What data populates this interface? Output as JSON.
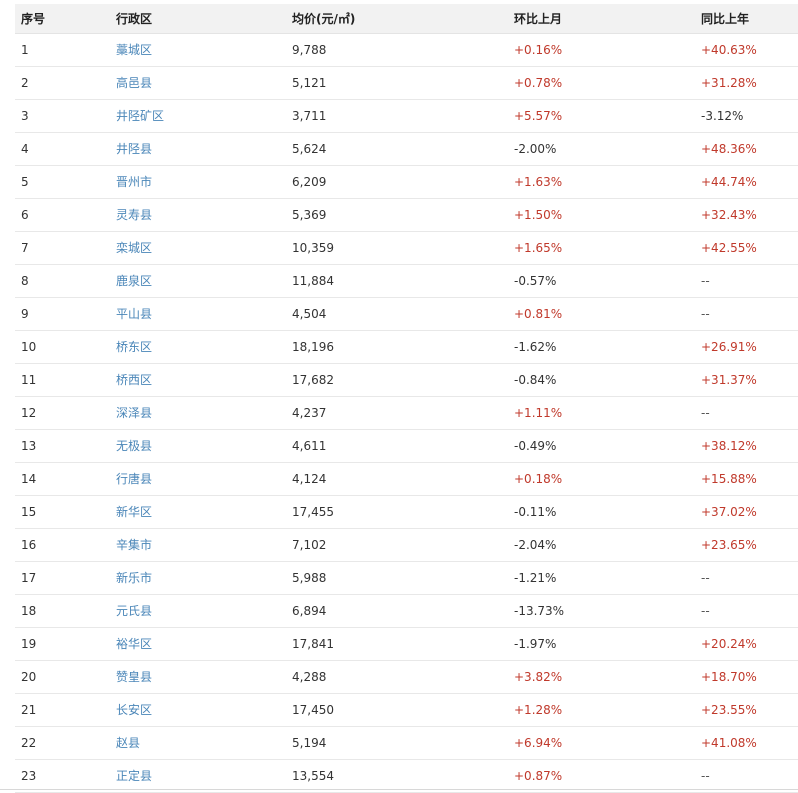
{
  "table": {
    "headers": [
      "序号",
      "行政区",
      "均价(元/㎡)",
      "环比上月",
      "同比上年"
    ],
    "rows": [
      [
        "1",
        "藁城区",
        "9,788",
        "+0.16%",
        "+40.63%"
      ],
      [
        "2",
        "高邑县",
        "5,121",
        "+0.78%",
        "+31.28%"
      ],
      [
        "3",
        "井陉矿区",
        "3,711",
        "+5.57%",
        "-3.12%"
      ],
      [
        "4",
        "井陉县",
        "5,624",
        "-2.00%",
        "+48.36%"
      ],
      [
        "5",
        "晋州市",
        "6,209",
        "+1.63%",
        "+44.74%"
      ],
      [
        "6",
        "灵寿县",
        "5,369",
        "+1.50%",
        "+32.43%"
      ],
      [
        "7",
        "栾城区",
        "10,359",
        "+1.65%",
        "+42.55%"
      ],
      [
        "8",
        "鹿泉区",
        "11,884",
        "-0.57%",
        "--"
      ],
      [
        "9",
        "平山县",
        "4,504",
        "+0.81%",
        "--"
      ],
      [
        "10",
        "桥东区",
        "18,196",
        "-1.62%",
        "+26.91%"
      ],
      [
        "11",
        "桥西区",
        "17,682",
        "-0.84%",
        "+31.37%"
      ],
      [
        "12",
        "深泽县",
        "4,237",
        "+1.11%",
        "--"
      ],
      [
        "13",
        "无极县",
        "4,611",
        "-0.49%",
        "+38.12%"
      ],
      [
        "14",
        "行唐县",
        "4,124",
        "+0.18%",
        "+15.88%"
      ],
      [
        "15",
        "新华区",
        "17,455",
        "-0.11%",
        "+37.02%"
      ],
      [
        "16",
        "辛集市",
        "7,102",
        "-2.04%",
        "+23.65%"
      ],
      [
        "17",
        "新乐市",
        "5,988",
        "-1.21%",
        "--"
      ],
      [
        "18",
        "元氏县",
        "6,894",
        "-13.73%",
        "--"
      ],
      [
        "19",
        "裕华区",
        "17,841",
        "-1.97%",
        "+20.24%"
      ],
      [
        "20",
        "赞皇县",
        "4,288",
        "+3.82%",
        "+18.70%"
      ],
      [
        "21",
        "长安区",
        "17,450",
        "+1.28%",
        "+23.55%"
      ],
      [
        "22",
        "赵县",
        "5,194",
        "+6.94%",
        "+41.08%"
      ],
      [
        "23",
        "正定县",
        "13,554",
        "+0.87%",
        "--"
      ]
    ]
  },
  "colors": {
    "link": "#4a86b8",
    "positive": "#c0392b",
    "negative": "#333333",
    "header_bg": "#f2f2f2"
  }
}
